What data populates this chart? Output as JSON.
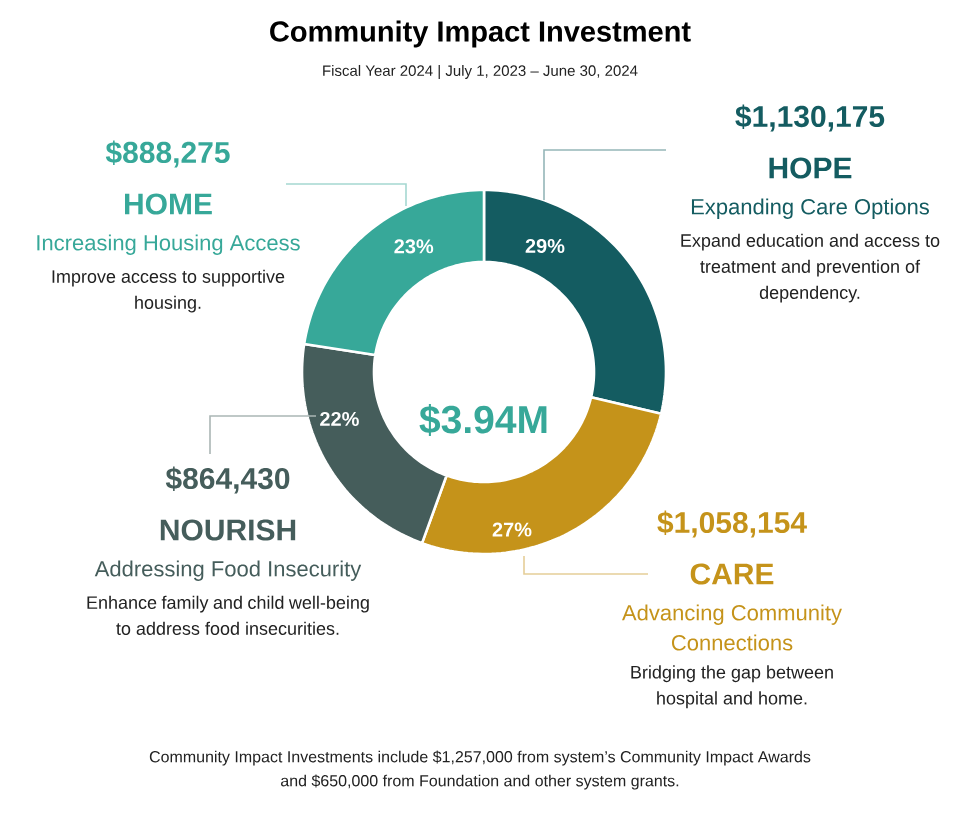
{
  "chart_data": {
    "type": "donut",
    "title": "Community Impact Investment",
    "subtitle": "Fiscal Year 2024 | July 1, 2023 – June 30, 2024",
    "categories": [
      "HOPE",
      "CARE",
      "NOURISH",
      "HOME"
    ],
    "values": [
      1130175,
      1058154,
      864430,
      888275
    ],
    "colors": [
      "#145c61",
      "#c5931a",
      "#455d5b",
      "#37a899"
    ],
    "value_labels": [
      "$1,130,175",
      "$1,058,154",
      "$864,430",
      "$888,275"
    ],
    "annotations": [
      "29%",
      "Expanding Care Options",
      "Expand education and access to treatment and prevention of dependency.",
      "27%",
      "Advancing Community Connections",
      "Bridging the gap between hospital and home.",
      "22%",
      "Addressing Food Insecurity",
      "Enhance family and child well-being to address food insecurities.",
      "23%",
      "Increasing Housing Access",
      "Improve access to supportive housing.",
      "$3.94M",
      "Community Impact Investments include $1,257,000 from system’s Community Impact Awards and $650,000 from Foundation and other system grants."
    ]
  }
}
